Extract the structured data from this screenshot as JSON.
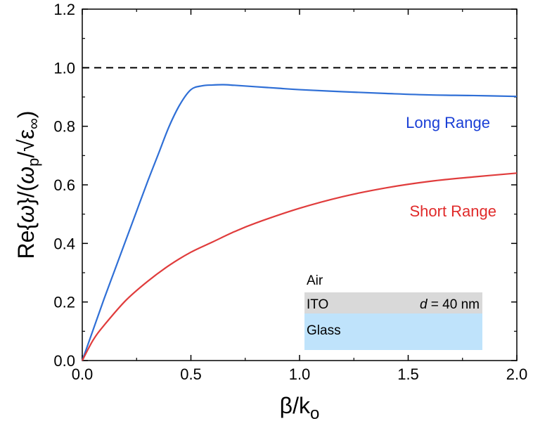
{
  "chart_data": {
    "type": "line",
    "xlabel": "β/k",
    "xlabel_sub": "o",
    "ylabel": {
      "prefix": "Re{",
      "omega": "ω",
      "mid": "}/(",
      "omega_p": "ω",
      "p_sub": "p",
      "slash": "/√",
      "eps": "ε",
      "inf_sub": "∞",
      "close": ")"
    },
    "xlim": [
      0,
      2.0
    ],
    "ylim": [
      0,
      1.2
    ],
    "xticks": [
      "0.0",
      "0.5",
      "1.0",
      "1.5",
      "2.0"
    ],
    "yticks": [
      "0.0",
      "0.2",
      "0.4",
      "0.6",
      "0.8",
      "1.0",
      "1.2"
    ],
    "xtick_values": [
      0,
      0.5,
      1.0,
      1.5,
      2.0
    ],
    "ytick_values": [
      0,
      0.2,
      0.4,
      0.6,
      0.8,
      1.0,
      1.2
    ],
    "reference_line": {
      "y": 1.0,
      "style": "dashed",
      "color": "#000000"
    },
    "series": [
      {
        "name": "Long Range",
        "color": "#2f6fd6",
        "label_color": "#1a3fd6",
        "x": [
          0,
          0.05,
          0.1,
          0.15,
          0.2,
          0.25,
          0.3,
          0.35,
          0.4,
          0.45,
          0.5,
          0.55,
          0.6,
          0.65,
          0.7,
          0.8,
          0.9,
          1.0,
          1.2,
          1.4,
          1.6,
          1.8,
          2.0
        ],
        "y": [
          0,
          0.105,
          0.21,
          0.31,
          0.41,
          0.51,
          0.61,
          0.705,
          0.8,
          0.875,
          0.925,
          0.938,
          0.941,
          0.942,
          0.94,
          0.935,
          0.93,
          0.925,
          0.918,
          0.912,
          0.907,
          0.905,
          0.902
        ]
      },
      {
        "name": "Short Range",
        "color": "#e03c3c",
        "label_color": "#e02a2a",
        "x": [
          0,
          0.05,
          0.1,
          0.2,
          0.3,
          0.4,
          0.5,
          0.6,
          0.7,
          0.8,
          1.0,
          1.2,
          1.4,
          1.6,
          1.8,
          2.0
        ],
        "y": [
          0,
          0.07,
          0.12,
          0.205,
          0.27,
          0.325,
          0.37,
          0.405,
          0.44,
          0.47,
          0.52,
          0.56,
          0.59,
          0.612,
          0.627,
          0.64
        ]
      }
    ],
    "inset": {
      "layers": [
        {
          "label": "Air",
          "color": "#ffffff"
        },
        {
          "label": "ITO",
          "color": "#d9d9d9",
          "note_var": "d",
          "note_rest": " = 40 nm"
        },
        {
          "label": "Glass",
          "color": "#bfe3fb"
        }
      ]
    }
  }
}
